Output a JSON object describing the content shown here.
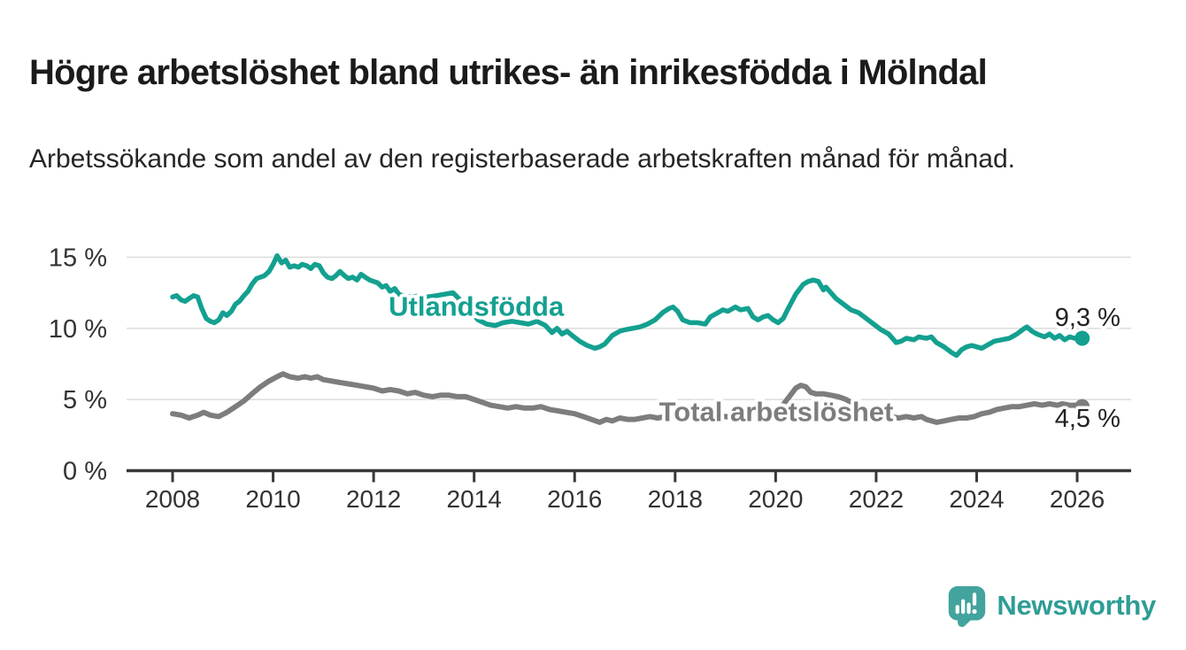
{
  "header": {
    "title": "Högre arbetslöshet bland utrikes- än inrikesfödda i Mölndal",
    "subtitle": "Arbetssökande som andel av den registerbaserade arbetskraften månad för månad."
  },
  "footer": {
    "brand": "Newsworthy"
  },
  "colors": {
    "teal": "#14a090",
    "gray": "#7d7d7d",
    "axis": "#383838",
    "grid": "#d9d9d9",
    "tick_text": "#333333",
    "value_label": "#222222",
    "logo": "#2f9d95",
    "logo_bubble": "#43a39d",
    "background": "#ffffff"
  },
  "chart_data": {
    "type": "line",
    "title": "Högre arbetslöshet bland utrikes- än inrikesfödda i Mölndal",
    "subtitle": "Arbetssökande som andel av den registerbaserade arbetskraften månad för månad.",
    "unit": "%",
    "grid": "horizontal",
    "legend_position": "inline-labels",
    "x_axis": {
      "min": 2007.6,
      "max": 2027.1,
      "ticks": [
        2008,
        2010,
        2012,
        2014,
        2016,
        2018,
        2020,
        2022,
        2024,
        2026
      ]
    },
    "y_axis": {
      "min": 0,
      "max": 15.5,
      "ticks": [
        {
          "value": 0,
          "label": "0 %"
        },
        {
          "value": 5,
          "label": "5 %"
        },
        {
          "value": 10,
          "label": "10 %"
        },
        {
          "value": 15,
          "label": "15 %"
        }
      ]
    },
    "series": [
      {
        "id": "utlandsfodda",
        "label": "Utlandsfödda",
        "color": "#14a090",
        "stroke_width": 5.5,
        "end_label": "9,3 %",
        "end_value": 9.3,
        "label_year": 2012.3,
        "label_value": 10.9,
        "points": [
          [
            2008.0,
            12.2
          ],
          [
            2008.08,
            12.3
          ],
          [
            2008.17,
            12.0
          ],
          [
            2008.25,
            11.9
          ],
          [
            2008.33,
            12.1
          ],
          [
            2008.42,
            12.3
          ],
          [
            2008.5,
            12.2
          ],
          [
            2008.58,
            11.4
          ],
          [
            2008.67,
            10.7
          ],
          [
            2008.75,
            10.5
          ],
          [
            2008.83,
            10.4
          ],
          [
            2008.92,
            10.6
          ],
          [
            2009.0,
            11.1
          ],
          [
            2009.08,
            10.9
          ],
          [
            2009.17,
            11.2
          ],
          [
            2009.25,
            11.7
          ],
          [
            2009.33,
            11.9
          ],
          [
            2009.42,
            12.3
          ],
          [
            2009.5,
            12.6
          ],
          [
            2009.58,
            13.1
          ],
          [
            2009.67,
            13.5
          ],
          [
            2009.75,
            13.6
          ],
          [
            2009.83,
            13.7
          ],
          [
            2009.92,
            14.0
          ],
          [
            2010.0,
            14.5
          ],
          [
            2010.08,
            15.1
          ],
          [
            2010.17,
            14.6
          ],
          [
            2010.25,
            14.8
          ],
          [
            2010.33,
            14.3
          ],
          [
            2010.42,
            14.4
          ],
          [
            2010.5,
            14.3
          ],
          [
            2010.58,
            14.5
          ],
          [
            2010.67,
            14.4
          ],
          [
            2010.75,
            14.2
          ],
          [
            2010.83,
            14.5
          ],
          [
            2010.92,
            14.4
          ],
          [
            2011.0,
            13.9
          ],
          [
            2011.08,
            13.6
          ],
          [
            2011.17,
            13.5
          ],
          [
            2011.25,
            13.7
          ],
          [
            2011.33,
            14.0
          ],
          [
            2011.42,
            13.7
          ],
          [
            2011.5,
            13.5
          ],
          [
            2011.58,
            13.6
          ],
          [
            2011.67,
            13.4
          ],
          [
            2011.75,
            13.8
          ],
          [
            2011.83,
            13.6
          ],
          [
            2011.92,
            13.4
          ],
          [
            2012.0,
            13.3
          ],
          [
            2012.08,
            13.2
          ],
          [
            2012.17,
            12.9
          ],
          [
            2012.25,
            13.0
          ],
          [
            2012.33,
            12.6
          ],
          [
            2012.42,
            12.8
          ],
          [
            2012.5,
            12.4
          ],
          [
            2012.58,
            12.3
          ],
          [
            2012.75,
            12.2
          ],
          [
            2012.92,
            12.3
          ],
          [
            2013.08,
            12.2
          ],
          [
            2013.25,
            12.3
          ],
          [
            2013.42,
            12.4
          ],
          [
            2013.58,
            12.5
          ],
          [
            2013.75,
            11.9
          ],
          [
            2013.92,
            11.2
          ],
          [
            2014.08,
            10.6
          ],
          [
            2014.25,
            10.3
          ],
          [
            2014.42,
            10.2
          ],
          [
            2014.58,
            10.4
          ],
          [
            2014.75,
            10.5
          ],
          [
            2014.92,
            10.4
          ],
          [
            2015.08,
            10.3
          ],
          [
            2015.25,
            10.5
          ],
          [
            2015.42,
            10.2
          ],
          [
            2015.55,
            9.7
          ],
          [
            2015.65,
            10.0
          ],
          [
            2015.75,
            9.6
          ],
          [
            2015.85,
            9.8
          ],
          [
            2015.95,
            9.5
          ],
          [
            2016.1,
            9.1
          ],
          [
            2016.25,
            8.8
          ],
          [
            2016.4,
            8.6
          ],
          [
            2016.5,
            8.7
          ],
          [
            2016.6,
            8.9
          ],
          [
            2016.75,
            9.5
          ],
          [
            2016.9,
            9.8
          ],
          [
            2017.0,
            9.9
          ],
          [
            2017.15,
            10.0
          ],
          [
            2017.3,
            10.1
          ],
          [
            2017.45,
            10.3
          ],
          [
            2017.6,
            10.6
          ],
          [
            2017.75,
            11.1
          ],
          [
            2017.88,
            11.4
          ],
          [
            2017.96,
            11.5
          ],
          [
            2018.05,
            11.2
          ],
          [
            2018.15,
            10.6
          ],
          [
            2018.3,
            10.4
          ],
          [
            2018.45,
            10.4
          ],
          [
            2018.6,
            10.3
          ],
          [
            2018.7,
            10.8
          ],
          [
            2018.85,
            11.1
          ],
          [
            2018.95,
            11.3
          ],
          [
            2019.05,
            11.2
          ],
          [
            2019.2,
            11.5
          ],
          [
            2019.3,
            11.3
          ],
          [
            2019.45,
            11.4
          ],
          [
            2019.55,
            10.8
          ],
          [
            2019.65,
            10.6
          ],
          [
            2019.75,
            10.8
          ],
          [
            2019.85,
            10.9
          ],
          [
            2019.95,
            10.6
          ],
          [
            2020.05,
            10.4
          ],
          [
            2020.15,
            10.7
          ],
          [
            2020.25,
            11.4
          ],
          [
            2020.4,
            12.4
          ],
          [
            2020.55,
            13.1
          ],
          [
            2020.65,
            13.3
          ],
          [
            2020.75,
            13.4
          ],
          [
            2020.85,
            13.3
          ],
          [
            2020.95,
            12.7
          ],
          [
            2021.0,
            12.9
          ],
          [
            2021.1,
            12.5
          ],
          [
            2021.2,
            12.1
          ],
          [
            2021.35,
            11.7
          ],
          [
            2021.5,
            11.3
          ],
          [
            2021.65,
            11.1
          ],
          [
            2021.8,
            10.7
          ],
          [
            2021.95,
            10.3
          ],
          [
            2022.1,
            9.9
          ],
          [
            2022.25,
            9.6
          ],
          [
            2022.4,
            9.0
          ],
          [
            2022.5,
            9.1
          ],
          [
            2022.6,
            9.3
          ],
          [
            2022.75,
            9.2
          ],
          [
            2022.85,
            9.4
          ],
          [
            2023.0,
            9.3
          ],
          [
            2023.1,
            9.4
          ],
          [
            2023.2,
            9.0
          ],
          [
            2023.35,
            8.7
          ],
          [
            2023.5,
            8.3
          ],
          [
            2023.6,
            8.1
          ],
          [
            2023.7,
            8.5
          ],
          [
            2023.8,
            8.7
          ],
          [
            2023.9,
            8.8
          ],
          [
            2024.0,
            8.7
          ],
          [
            2024.1,
            8.6
          ],
          [
            2024.2,
            8.8
          ],
          [
            2024.35,
            9.1
          ],
          [
            2024.5,
            9.2
          ],
          [
            2024.65,
            9.3
          ],
          [
            2024.8,
            9.6
          ],
          [
            2024.95,
            10.0
          ],
          [
            2025.0,
            10.1
          ],
          [
            2025.1,
            9.8
          ],
          [
            2025.2,
            9.6
          ],
          [
            2025.35,
            9.4
          ],
          [
            2025.45,
            9.6
          ],
          [
            2025.55,
            9.3
          ],
          [
            2025.65,
            9.5
          ],
          [
            2025.75,
            9.2
          ],
          [
            2025.85,
            9.4
          ],
          [
            2025.95,
            9.3
          ],
          [
            2026.1,
            9.3
          ]
        ]
      },
      {
        "id": "total-arbetsloshet",
        "label": "Total arbetslöshet",
        "color": "#7d7d7d",
        "stroke_width": 6,
        "end_label": "4,5 %",
        "end_value": 4.5,
        "label_year": 2017.68,
        "label_value": 3.5,
        "points": [
          [
            2008.0,
            4.0
          ],
          [
            2008.17,
            3.9
          ],
          [
            2008.33,
            3.7
          ],
          [
            2008.5,
            3.9
          ],
          [
            2008.62,
            4.1
          ],
          [
            2008.75,
            3.9
          ],
          [
            2008.92,
            3.8
          ],
          [
            2009.08,
            4.1
          ],
          [
            2009.25,
            4.5
          ],
          [
            2009.42,
            4.9
          ],
          [
            2009.58,
            5.4
          ],
          [
            2009.75,
            5.9
          ],
          [
            2009.92,
            6.3
          ],
          [
            2010.08,
            6.6
          ],
          [
            2010.2,
            6.8
          ],
          [
            2010.33,
            6.6
          ],
          [
            2010.5,
            6.5
          ],
          [
            2010.63,
            6.6
          ],
          [
            2010.75,
            6.5
          ],
          [
            2010.88,
            6.6
          ],
          [
            2011.0,
            6.4
          ],
          [
            2011.17,
            6.3
          ],
          [
            2011.33,
            6.2
          ],
          [
            2011.5,
            6.1
          ],
          [
            2011.67,
            6.0
          ],
          [
            2011.83,
            5.9
          ],
          [
            2012.0,
            5.8
          ],
          [
            2012.17,
            5.6
          ],
          [
            2012.33,
            5.7
          ],
          [
            2012.5,
            5.6
          ],
          [
            2012.67,
            5.4
          ],
          [
            2012.83,
            5.5
          ],
          [
            2013.0,
            5.3
          ],
          [
            2013.17,
            5.2
          ],
          [
            2013.33,
            5.3
          ],
          [
            2013.5,
            5.3
          ],
          [
            2013.67,
            5.2
          ],
          [
            2013.83,
            5.2
          ],
          [
            2014.0,
            5.0
          ],
          [
            2014.17,
            4.8
          ],
          [
            2014.33,
            4.6
          ],
          [
            2014.5,
            4.5
          ],
          [
            2014.67,
            4.4
          ],
          [
            2014.83,
            4.5
          ],
          [
            2015.0,
            4.4
          ],
          [
            2015.17,
            4.4
          ],
          [
            2015.33,
            4.5
          ],
          [
            2015.5,
            4.3
          ],
          [
            2015.67,
            4.2
          ],
          [
            2015.83,
            4.1
          ],
          [
            2016.0,
            4.0
          ],
          [
            2016.17,
            3.8
          ],
          [
            2016.33,
            3.6
          ],
          [
            2016.5,
            3.4
          ],
          [
            2016.63,
            3.6
          ],
          [
            2016.75,
            3.5
          ],
          [
            2016.9,
            3.7
          ],
          [
            2017.05,
            3.6
          ],
          [
            2017.2,
            3.6
          ],
          [
            2017.35,
            3.7
          ],
          [
            2017.5,
            3.8
          ],
          [
            2017.65,
            3.7
          ],
          [
            2017.8,
            3.8
          ],
          [
            2018.0,
            3.8
          ],
          [
            2018.2,
            3.9
          ],
          [
            2018.4,
            3.8
          ],
          [
            2018.6,
            3.8
          ],
          [
            2018.8,
            3.9
          ],
          [
            2019.0,
            3.8
          ],
          [
            2019.2,
            3.7
          ],
          [
            2019.4,
            3.6
          ],
          [
            2019.6,
            3.7
          ],
          [
            2019.8,
            3.8
          ],
          [
            2019.95,
            4.0
          ],
          [
            2020.1,
            4.4
          ],
          [
            2020.25,
            5.1
          ],
          [
            2020.4,
            5.8
          ],
          [
            2020.5,
            6.0
          ],
          [
            2020.6,
            5.9
          ],
          [
            2020.7,
            5.5
          ],
          [
            2020.8,
            5.4
          ],
          [
            2020.95,
            5.4
          ],
          [
            2021.1,
            5.3
          ],
          [
            2021.25,
            5.2
          ],
          [
            2021.4,
            5.0
          ],
          [
            2021.55,
            4.7
          ],
          [
            2021.7,
            4.4
          ],
          [
            2021.85,
            4.2
          ],
          [
            2022.0,
            4.0
          ],
          [
            2022.15,
            3.9
          ],
          [
            2022.3,
            3.8
          ],
          [
            2022.45,
            3.7
          ],
          [
            2022.6,
            3.8
          ],
          [
            2022.75,
            3.7
          ],
          [
            2022.9,
            3.8
          ],
          [
            2023.0,
            3.6
          ],
          [
            2023.1,
            3.5
          ],
          [
            2023.2,
            3.4
          ],
          [
            2023.35,
            3.5
          ],
          [
            2023.5,
            3.6
          ],
          [
            2023.65,
            3.7
          ],
          [
            2023.8,
            3.7
          ],
          [
            2023.95,
            3.8
          ],
          [
            2024.1,
            4.0
          ],
          [
            2024.25,
            4.1
          ],
          [
            2024.4,
            4.3
          ],
          [
            2024.55,
            4.4
          ],
          [
            2024.7,
            4.5
          ],
          [
            2024.85,
            4.5
          ],
          [
            2025.0,
            4.6
          ],
          [
            2025.15,
            4.7
          ],
          [
            2025.3,
            4.6
          ],
          [
            2025.45,
            4.7
          ],
          [
            2025.6,
            4.6
          ],
          [
            2025.7,
            4.7
          ],
          [
            2025.85,
            4.6
          ],
          [
            2026.0,
            4.6
          ],
          [
            2026.1,
            4.5
          ]
        ]
      }
    ]
  }
}
